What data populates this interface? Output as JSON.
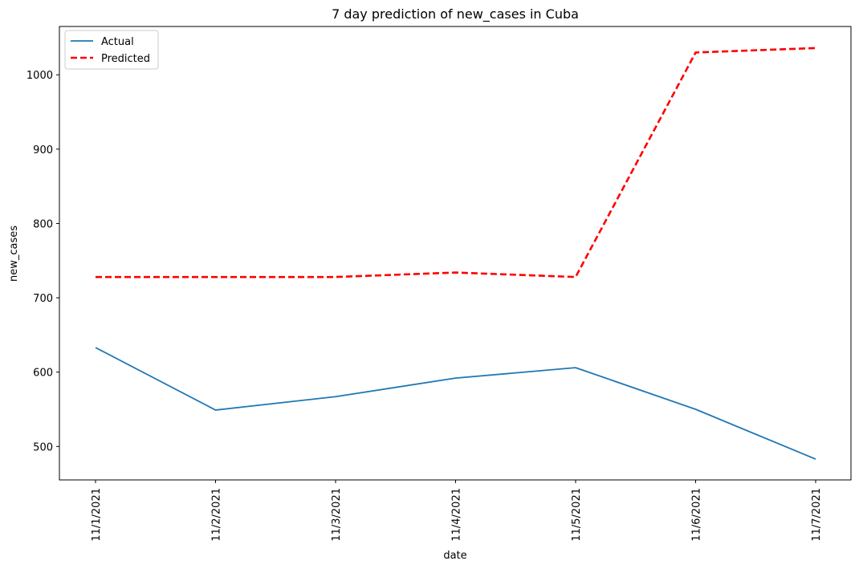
{
  "chart_data": {
    "type": "line",
    "title": "7 day prediction of new_cases in Cuba",
    "xlabel": "date",
    "ylabel": "new_cases",
    "categories": [
      "11/1/2021",
      "11/2/2021",
      "11/3/2021",
      "11/4/2021",
      "11/5/2021",
      "11/6/2021",
      "11/7/2021"
    ],
    "ylim": [
      455,
      1065
    ],
    "yticks": [
      500,
      600,
      700,
      800,
      900,
      1000
    ],
    "grid": false,
    "legend_position": "top-left",
    "series": [
      {
        "name": "Actual",
        "values": [
          633,
          549,
          567,
          592,
          606,
          550,
          483
        ],
        "color": "#1f77b4",
        "style": "solid"
      },
      {
        "name": "Predicted",
        "values": [
          728,
          728,
          728,
          734,
          728,
          1030,
          1036
        ],
        "color": "#ff0000",
        "style": "dashed"
      }
    ]
  }
}
